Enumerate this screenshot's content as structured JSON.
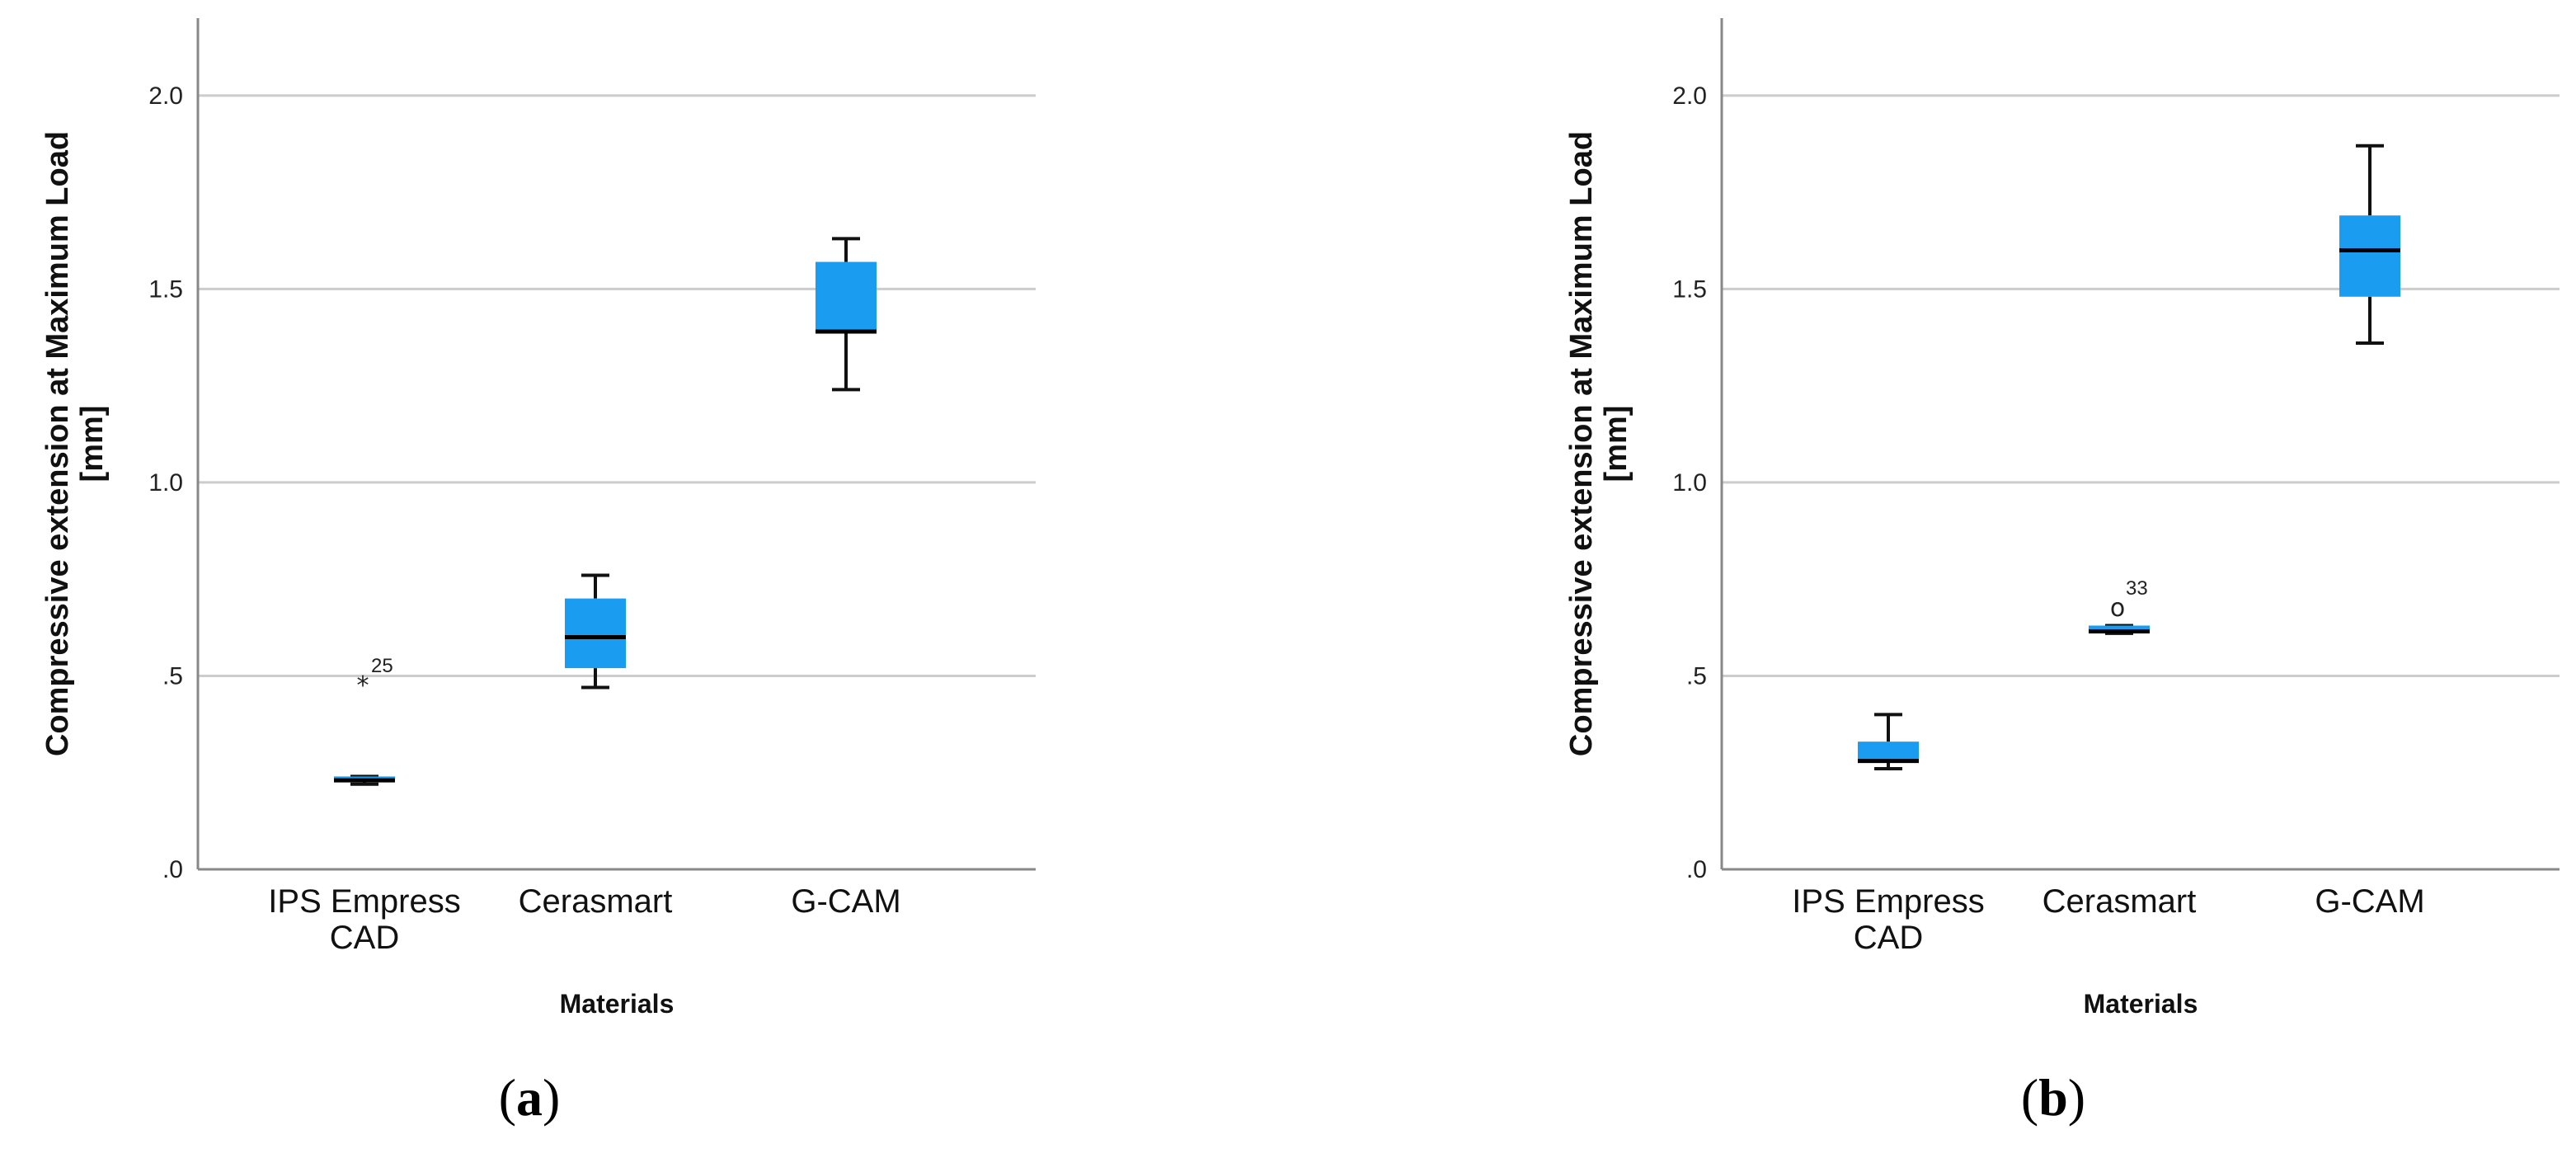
{
  "colors": {
    "box_fill": "#1a9cf0",
    "grid": "#cccccc",
    "axis": "#888888",
    "whisker": "#111111"
  },
  "chart_data": [
    {
      "type": "box",
      "panel_label": "a",
      "xlabel": "Materials",
      "ylabel_lines": [
        "Compressive extension at Maximum Load",
        "[mm]"
      ],
      "ylim": [
        0,
        2.2
      ],
      "yticks": [
        {
          "value": 0,
          "label": ".0"
        },
        {
          "value": 0.5,
          "label": ".5"
        },
        {
          "value": 1.0,
          "label": "1.0"
        },
        {
          "value": 1.5,
          "label": "1.5"
        },
        {
          "value": 2.0,
          "label": "2.0"
        }
      ],
      "grid": true,
      "categories": [
        {
          "label_lines": [
            "IPS Empress",
            "CAD"
          ],
          "whisker_low": 0.22,
          "q1": 0.225,
          "median": 0.23,
          "q3": 0.24,
          "whisker_high": 0.24,
          "outliers": [
            {
              "value": 0.48,
              "label": "25",
              "marker": "*"
            }
          ]
        },
        {
          "label_lines": [
            "Cerasmart"
          ],
          "whisker_low": 0.47,
          "q1": 0.52,
          "median": 0.6,
          "q3": 0.7,
          "whisker_high": 0.76,
          "outliers": []
        },
        {
          "label_lines": [
            "G-CAM"
          ],
          "whisker_low": 1.24,
          "q1": 1.39,
          "median": 1.39,
          "q3": 1.57,
          "whisker_high": 1.63,
          "outliers": []
        }
      ]
    },
    {
      "type": "box",
      "panel_label": "b",
      "xlabel": "Materials",
      "ylabel_lines": [
        "Compressive extension at Maximum Load",
        "[mm]"
      ],
      "ylim": [
        0,
        2.2
      ],
      "yticks": [
        {
          "value": 0,
          "label": ".0"
        },
        {
          "value": 0.5,
          "label": ".5"
        },
        {
          "value": 1.0,
          "label": "1.0"
        },
        {
          "value": 1.5,
          "label": "1.5"
        },
        {
          "value": 2.0,
          "label": "2.0"
        }
      ],
      "grid": true,
      "categories": [
        {
          "label_lines": [
            "IPS Empress",
            "CAD"
          ],
          "whisker_low": 0.26,
          "q1": 0.28,
          "median": 0.28,
          "q3": 0.33,
          "whisker_high": 0.4,
          "outliers": []
        },
        {
          "label_lines": [
            "Cerasmart"
          ],
          "whisker_low": 0.61,
          "q1": 0.61,
          "median": 0.615,
          "q3": 0.63,
          "whisker_high": 0.63,
          "outliers": [
            {
              "value": 0.68,
              "label": "33",
              "marker": "o"
            }
          ]
        },
        {
          "label_lines": [
            "G-CAM"
          ],
          "whisker_low": 1.36,
          "q1": 1.48,
          "median": 1.6,
          "q3": 1.69,
          "whisker_high": 1.87,
          "outliers": []
        }
      ]
    }
  ]
}
